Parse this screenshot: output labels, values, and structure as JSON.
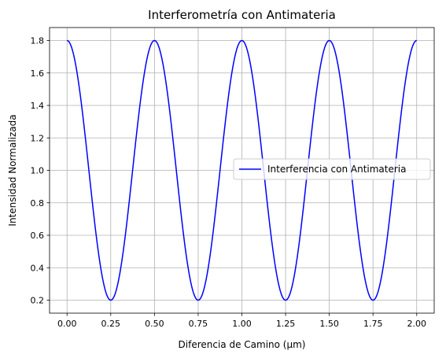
{
  "chart_data": {
    "type": "line",
    "title": "Interferometría con Antimateria",
    "xlabel": "Diferencia de Camino (µm)",
    "ylabel": "Intensidad Normalizada",
    "xlim": [
      -0.1,
      2.1
    ],
    "ylim": [
      0.12,
      1.88
    ],
    "xticks": [
      0.0,
      0.25,
      0.5,
      0.75,
      1.0,
      1.25,
      1.5,
      1.75,
      2.0
    ],
    "xtick_labels": [
      "0.00",
      "0.25",
      "0.50",
      "0.75",
      "1.00",
      "1.25",
      "1.50",
      "1.75",
      "2.00"
    ],
    "yticks": [
      0.2,
      0.4,
      0.6,
      0.8,
      1.0,
      1.2,
      1.4,
      1.6,
      1.8
    ],
    "ytick_labels": [
      "0.2",
      "0.4",
      "0.6",
      "0.8",
      "1.0",
      "1.2",
      "1.4",
      "1.6",
      "1.8"
    ],
    "grid": true,
    "legend_position": "center-right",
    "series": [
      {
        "name": "Interferencia con Antimateria",
        "color": "#0000ff",
        "function": "1.0 + 0.8*cos(4*pi*x)",
        "x": [
          0.0,
          0.125,
          0.25,
          0.375,
          0.5,
          0.625,
          0.75,
          0.875,
          1.0,
          1.125,
          1.25,
          1.375,
          1.5,
          1.625,
          1.75,
          1.875,
          2.0
        ],
        "y": [
          1.8,
          1.0,
          0.2,
          1.0,
          1.8,
          1.0,
          0.2,
          1.0,
          1.8,
          1.0,
          0.2,
          1.0,
          1.8,
          1.0,
          0.2,
          1.0,
          1.8
        ]
      }
    ]
  }
}
